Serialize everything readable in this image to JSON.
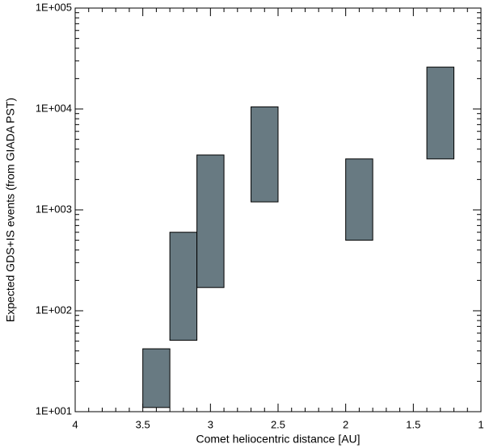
{
  "chart_data": {
    "type": "floating-bar",
    "x_label": "Comet heliocentric distance [AU]",
    "y_label": "Expected GDS+IS events (from GIADA PST)",
    "x_start": [
      3.5,
      3.3,
      3.1,
      2.7,
      2.0,
      1.4
    ],
    "x_end": [
      3.3,
      3.1,
      2.9,
      2.5,
      1.8,
      1.2
    ],
    "low": [
      11,
      51,
      170,
      1200,
      500,
      3200
    ],
    "high": [
      42,
      600,
      3500,
      10500,
      3200,
      26000
    ],
    "color": "#687a82",
    "xlim": [
      4,
      1
    ],
    "xticks": [
      4,
      3.5,
      3,
      2.5,
      2,
      1.5,
      1
    ],
    "ylim": [
      10,
      100000
    ],
    "y_log": true,
    "yticks": [
      {
        "value": 10,
        "label": "1E+001"
      },
      {
        "value": 100,
        "label": "1E+002"
      },
      {
        "value": 1000,
        "label": "1E+003"
      },
      {
        "value": 10000,
        "label": "1E+004"
      },
      {
        "value": 100000,
        "label": "1E+005"
      }
    ]
  }
}
